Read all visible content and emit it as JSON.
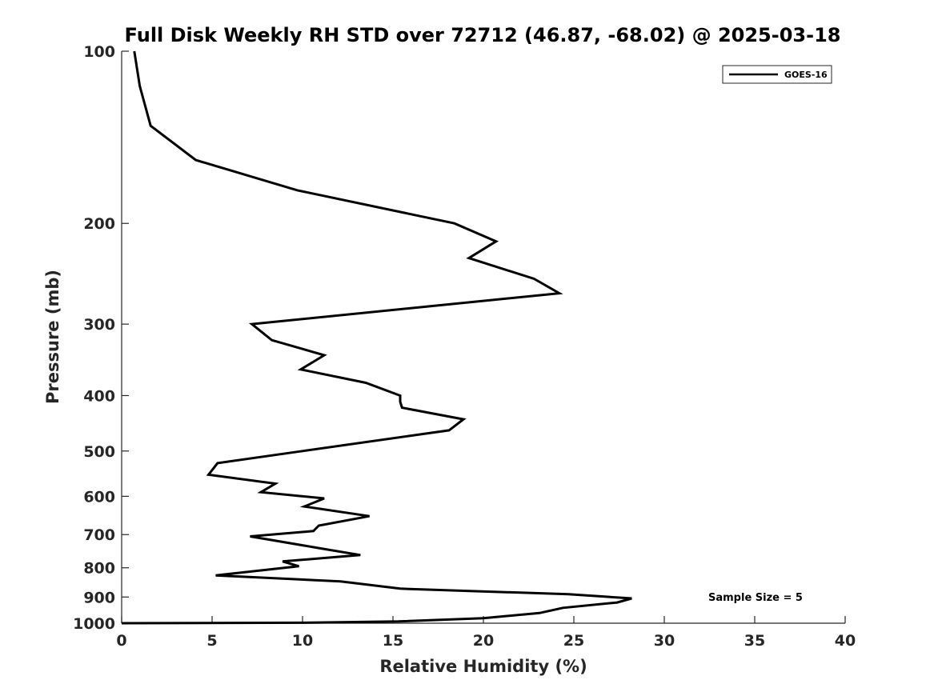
{
  "chart_data": {
    "type": "line",
    "title": "Full Disk Weekly RH STD over 72712 (46.87, -68.02) @ 2025-03-18",
    "xlabel": "Relative Humidity (%)",
    "ylabel": "Pressure (mb)",
    "xlim": [
      0,
      40
    ],
    "ylim": [
      100,
      1000
    ],
    "y_scale": "log",
    "y_reversed": true,
    "x_ticks": [
      0,
      5,
      10,
      15,
      20,
      25,
      30,
      35,
      40
    ],
    "y_ticks": [
      100,
      200,
      300,
      400,
      500,
      600,
      700,
      800,
      900,
      1000
    ],
    "grid": false,
    "legend_position": "top-right",
    "line_color": "#000000",
    "series": [
      {
        "name": "GOES-16",
        "x": [
          0.7,
          1.0,
          1.6,
          4.1,
          9.7,
          18.4,
          20.7,
          19.2,
          22.8,
          24.2,
          7.2,
          8.3,
          11.2,
          9.9,
          13.5,
          15.4,
          15.4,
          15.5,
          18.9,
          18.1,
          10.0,
          5.3,
          4.8,
          8.5,
          7.7,
          11.2,
          10.1,
          13.7,
          10.9,
          10.6,
          7.1,
          11.0,
          13.2,
          8.9,
          9.8,
          5.2,
          12.1,
          15.4,
          24.7,
          28.2,
          27.4,
          24.4,
          23.1,
          20.0,
          15.3,
          10.0,
          0.0
        ],
        "y": [
          100,
          115,
          135,
          155,
          175,
          200,
          215,
          230,
          250,
          265,
          300,
          320,
          340,
          360,
          380,
          400,
          410,
          420,
          440,
          460,
          500,
          525,
          550,
          570,
          590,
          605,
          625,
          650,
          675,
          690,
          705,
          740,
          760,
          780,
          795,
          825,
          845,
          870,
          890,
          905,
          920,
          940,
          960,
          980,
          993,
          998,
          1000
        ]
      }
    ],
    "annotations": [
      "Sample Size = 5"
    ]
  }
}
